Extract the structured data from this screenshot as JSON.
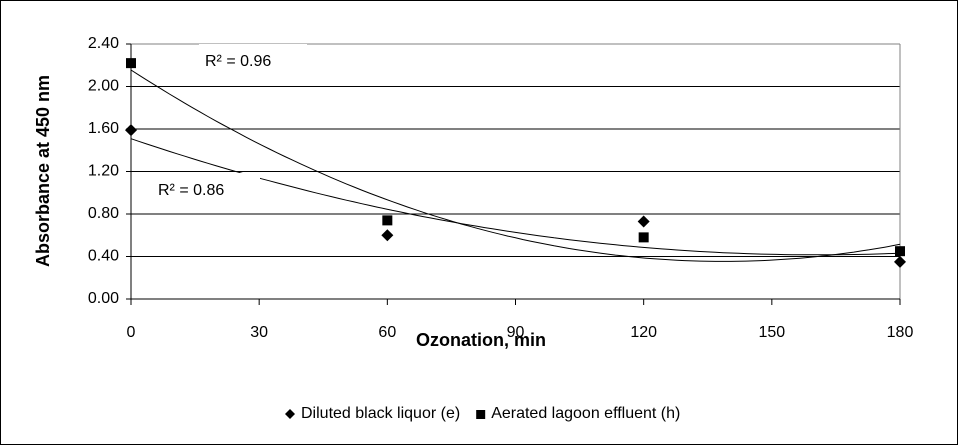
{
  "chart_data": {
    "type": "scatter",
    "xlabel": "Ozonation, min",
    "ylabel": "Absorbance at 450 nm",
    "x": [
      0,
      60,
      120,
      180
    ],
    "series": [
      {
        "name": "Diluted black liquor (e)",
        "color": "#000000",
        "marker": "diamond",
        "values": [
          1.59,
          0.6,
          0.73,
          0.35
        ]
      },
      {
        "name": "Aerated lagoon effluent (h)",
        "color": "#000000",
        "marker": "square",
        "values": [
          2.22,
          0.74,
          0.58,
          0.45
        ]
      }
    ],
    "trendline": "polynomial",
    "annotations": [
      {
        "text": "R² = 0.96"
      },
      {
        "text": "R² = 0.86"
      }
    ],
    "xlim": [
      0,
      180
    ],
    "xticks": [
      0,
      30,
      60,
      90,
      120,
      150,
      180
    ],
    "ylim": [
      0,
      2.4
    ],
    "yticks": [
      {
        "value": 0,
        "label": "0.00"
      },
      {
        "value": 0.4,
        "label": "0.40"
      },
      {
        "value": 0.8,
        "label": "0.80"
      },
      {
        "value": 1.2,
        "label": "1.20"
      },
      {
        "value": 1.6,
        "label": "1.60"
      },
      {
        "value": 2.0,
        "label": "2.00"
      },
      {
        "value": 2.4,
        "label": "2.40"
      }
    ],
    "grid": true,
    "legend": "bottom"
  }
}
